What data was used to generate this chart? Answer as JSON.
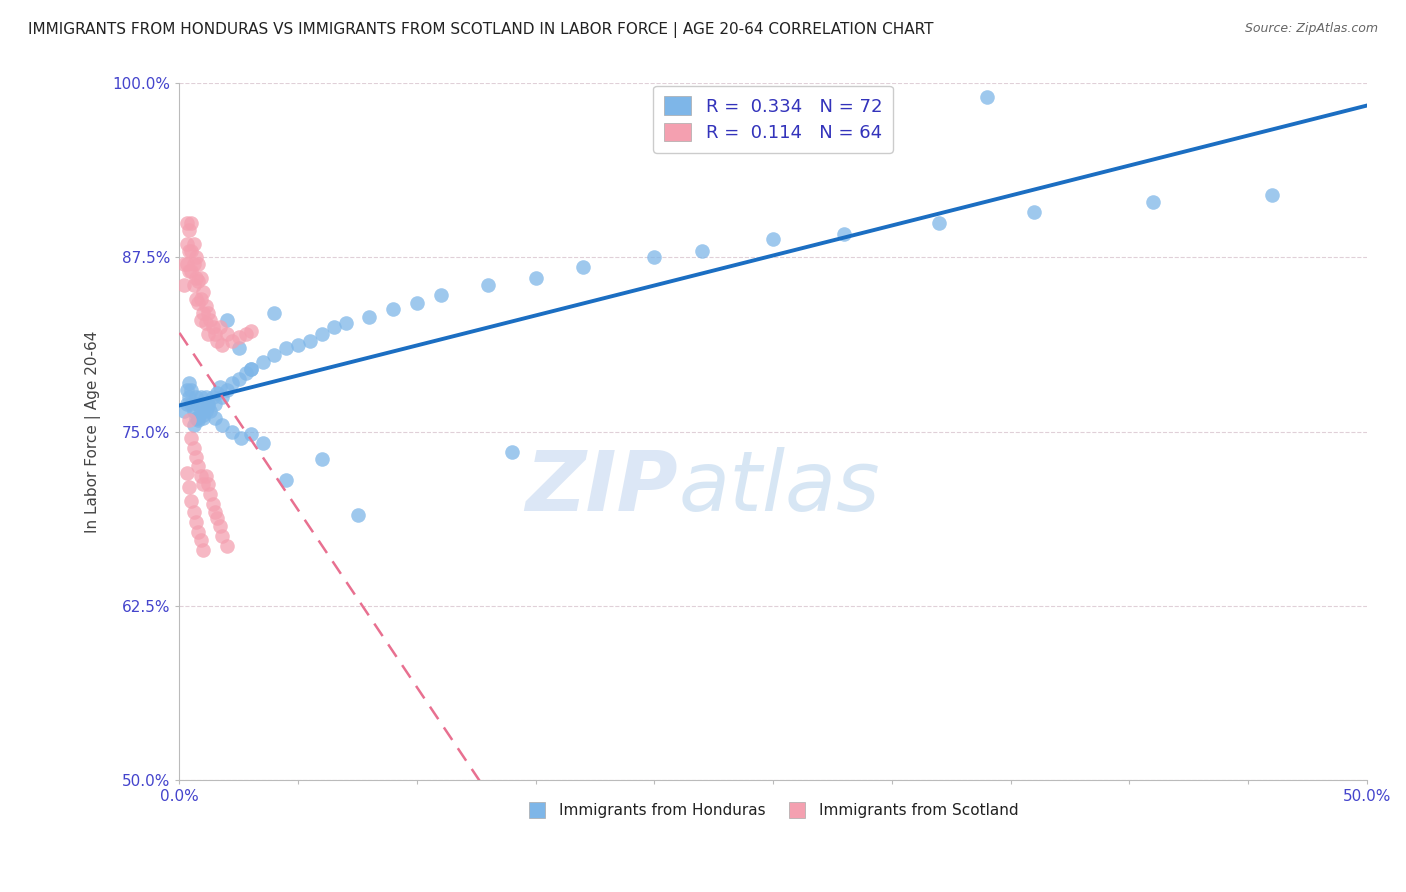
{
  "title": "IMMIGRANTS FROM HONDURAS VS IMMIGRANTS FROM SCOTLAND IN LABOR FORCE | AGE 20-64 CORRELATION CHART",
  "source_text": "Source: ZipAtlas.com",
  "ylabel": "In Labor Force | Age 20-64",
  "watermark_zip": "ZIP",
  "watermark_atlas": "atlas",
  "xlim": [
    0.0,
    0.5
  ],
  "ylim": [
    0.5,
    1.0
  ],
  "ytick_labels": [
    "50.0%",
    "62.5%",
    "75.0%",
    "87.5%",
    "100.0%"
  ],
  "ytick_values": [
    0.5,
    0.625,
    0.75,
    0.875,
    1.0
  ],
  "xtick_values": [
    0.0,
    0.05,
    0.1,
    0.15,
    0.2,
    0.25,
    0.3,
    0.35,
    0.4,
    0.45,
    0.5
  ],
  "legend_R_honduras": "0.334",
  "legend_N_honduras": "72",
  "legend_R_scotland": "0.114",
  "legend_N_scotland": "64",
  "honduras_color": "#7EB6E8",
  "scotland_color": "#F4A0B0",
  "honduras_line_color": "#1B6EC2",
  "scotland_line_color": "#E87090",
  "title_fontsize": 11,
  "axis_label_fontsize": 11,
  "tick_fontsize": 11,
  "tick_color": "#4444CC",
  "honduras_x": [
    0.002,
    0.003,
    0.003,
    0.004,
    0.004,
    0.005,
    0.005,
    0.006,
    0.006,
    0.007,
    0.007,
    0.008,
    0.008,
    0.009,
    0.009,
    0.01,
    0.01,
    0.011,
    0.011,
    0.012,
    0.013,
    0.014,
    0.015,
    0.016,
    0.017,
    0.018,
    0.02,
    0.022,
    0.025,
    0.028,
    0.03,
    0.035,
    0.04,
    0.045,
    0.05,
    0.055,
    0.06,
    0.065,
    0.07,
    0.08,
    0.09,
    0.1,
    0.11,
    0.13,
    0.15,
    0.17,
    0.2,
    0.22,
    0.25,
    0.28,
    0.32,
    0.36,
    0.41,
    0.46,
    0.008,
    0.01,
    0.012,
    0.015,
    0.018,
    0.022,
    0.026,
    0.03,
    0.035,
    0.025,
    0.03,
    0.02,
    0.04,
    0.045,
    0.06,
    0.075,
    0.14,
    0.34
  ],
  "honduras_y": [
    0.765,
    0.77,
    0.78,
    0.775,
    0.785,
    0.77,
    0.78,
    0.755,
    0.765,
    0.76,
    0.775,
    0.77,
    0.76,
    0.765,
    0.775,
    0.76,
    0.77,
    0.765,
    0.775,
    0.77,
    0.765,
    0.775,
    0.77,
    0.778,
    0.782,
    0.775,
    0.78,
    0.785,
    0.788,
    0.792,
    0.795,
    0.8,
    0.805,
    0.81,
    0.812,
    0.815,
    0.82,
    0.825,
    0.828,
    0.832,
    0.838,
    0.842,
    0.848,
    0.855,
    0.86,
    0.868,
    0.875,
    0.88,
    0.888,
    0.892,
    0.9,
    0.908,
    0.915,
    0.92,
    0.758,
    0.762,
    0.768,
    0.76,
    0.755,
    0.75,
    0.745,
    0.748,
    0.742,
    0.81,
    0.795,
    0.83,
    0.835,
    0.715,
    0.73,
    0.69,
    0.735,
    0.99
  ],
  "scotland_x": [
    0.002,
    0.002,
    0.003,
    0.003,
    0.003,
    0.004,
    0.004,
    0.004,
    0.005,
    0.005,
    0.005,
    0.006,
    0.006,
    0.006,
    0.007,
    0.007,
    0.007,
    0.008,
    0.008,
    0.008,
    0.009,
    0.009,
    0.009,
    0.01,
    0.01,
    0.011,
    0.011,
    0.012,
    0.012,
    0.013,
    0.014,
    0.015,
    0.016,
    0.017,
    0.018,
    0.02,
    0.022,
    0.025,
    0.028,
    0.03,
    0.004,
    0.005,
    0.006,
    0.007,
    0.008,
    0.009,
    0.01,
    0.011,
    0.012,
    0.013,
    0.014,
    0.015,
    0.016,
    0.017,
    0.018,
    0.02,
    0.003,
    0.004,
    0.005,
    0.006,
    0.007,
    0.008,
    0.009,
    0.01
  ],
  "scotland_y": [
    0.87,
    0.855,
    0.9,
    0.885,
    0.87,
    0.895,
    0.88,
    0.865,
    0.9,
    0.88,
    0.865,
    0.885,
    0.87,
    0.855,
    0.875,
    0.86,
    0.845,
    0.87,
    0.858,
    0.842,
    0.86,
    0.845,
    0.83,
    0.85,
    0.835,
    0.84,
    0.828,
    0.835,
    0.82,
    0.83,
    0.825,
    0.82,
    0.815,
    0.825,
    0.812,
    0.82,
    0.815,
    0.818,
    0.82,
    0.822,
    0.758,
    0.745,
    0.738,
    0.732,
    0.725,
    0.718,
    0.712,
    0.718,
    0.712,
    0.705,
    0.698,
    0.692,
    0.688,
    0.682,
    0.675,
    0.668,
    0.72,
    0.71,
    0.7,
    0.692,
    0.685,
    0.678,
    0.672,
    0.665
  ]
}
